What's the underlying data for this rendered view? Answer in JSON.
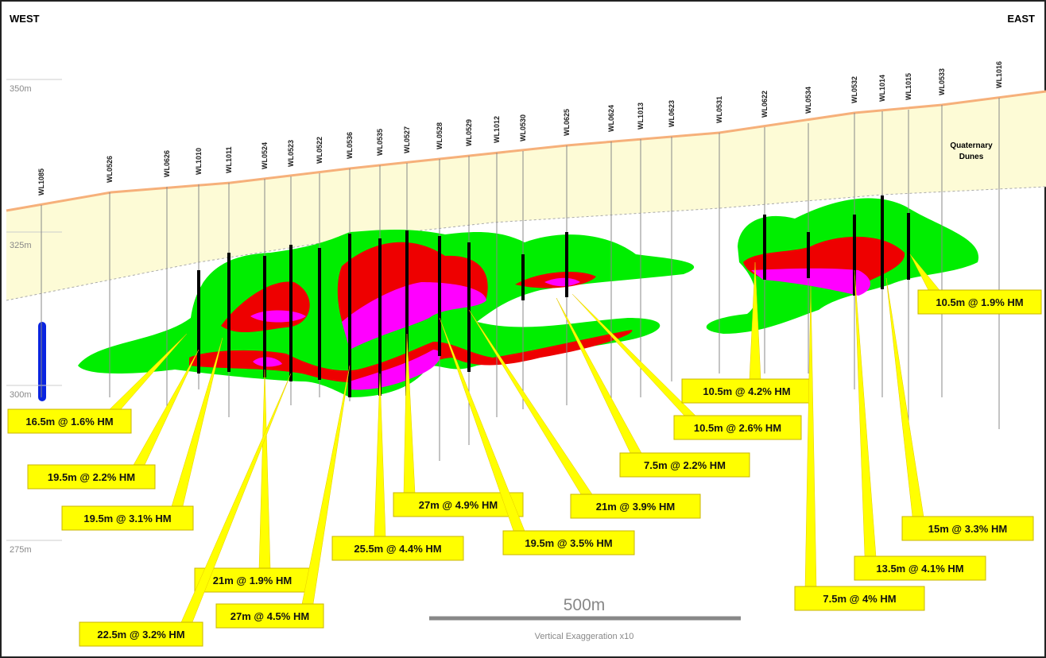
{
  "header": {
    "west": "WEST",
    "east": "EAST"
  },
  "elevations": [
    "350m",
    "325m",
    "300m",
    "275m"
  ],
  "holes": [
    "WL1085",
    "WL0526",
    "WL0626",
    "WL1010",
    "WL1011",
    "WL0524",
    "WL0523",
    "WL0522",
    "WL0536",
    "WL0535",
    "WL0527",
    "WL0528",
    "WL0529",
    "WL1012",
    "WL0530",
    "WL0625",
    "WL0624",
    "WL1013",
    "WL0623",
    "WL0531",
    "WL0622",
    "WL0534",
    "WL0532",
    "WL1014",
    "WL1015",
    "WL0533",
    "WL1016"
  ],
  "unit_label": [
    "Quaternary",
    "Dunes"
  ],
  "intercepts": [
    "16.5m @ 1.6% HM",
    "19.5m @ 2.2% HM",
    "19.5m @ 3.1% HM",
    "21m @ 1.9% HM",
    "22.5m @ 3.2% HM",
    "27m @ 4.5% HM",
    "25.5m @ 4.4% HM",
    "27m @ 4.9% HM",
    "19.5m @ 3.5% HM",
    "21m @ 3.9% HM",
    "7.5m @ 2.2% HM",
    "10.5m @ 2.6% HM",
    "10.5m @ 4.2% HM",
    "7.5m @ 4% HM",
    "13.5m @ 4.1% HM",
    "15m @ 3.3% HM",
    "10.5m @ 1.9% HM"
  ],
  "scale": {
    "length": "500m",
    "note": "Vertical Exaggeration x10"
  }
}
